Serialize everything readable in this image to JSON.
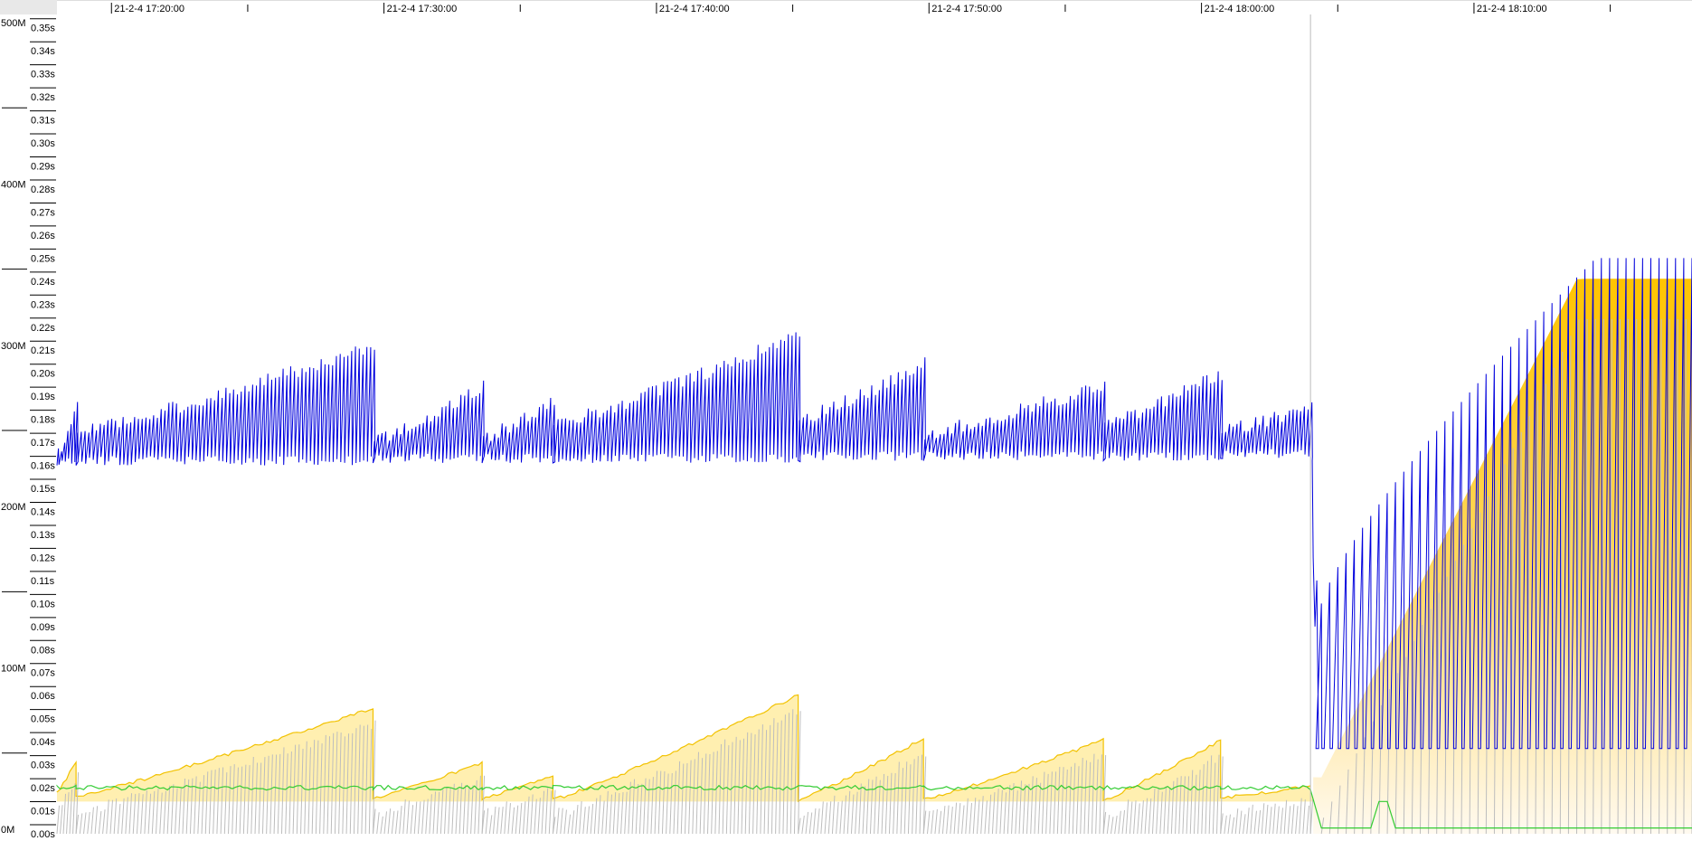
{
  "chart_data": {
    "type": "line",
    "title": "",
    "x_axis": {
      "labels": [
        "21-2-4 17:20:00",
        "21-2-4 17:30:00",
        "21-2-4 17:40:00",
        "21-2-4 17:50:00",
        "21-2-4 18:00:00",
        "21-2-4 18:10:00"
      ],
      "range": [
        "21-2-4 17:18:00",
        "21-2-4 18:18:00"
      ]
    },
    "y_axis_memory": {
      "labels": [
        "500M",
        "400M",
        "300M",
        "200M",
        "100M",
        "0M"
      ],
      "range": [
        0,
        500
      ]
    },
    "y_axis_pause": {
      "labels": [
        "0.35s",
        "0.34s",
        "0.33s",
        "0.32s",
        "0.31s",
        "0.30s",
        "0.29s",
        "0.28s",
        "0.27s",
        "0.26s",
        "0.25s",
        "0.24s",
        "0.23s",
        "0.22s",
        "0.21s",
        "0.20s",
        "0.19s",
        "0.18s",
        "0.17s",
        "0.16s",
        "0.15s",
        "0.14s",
        "0.13s",
        "0.12s",
        "0.11s",
        "0.10s",
        "0.09s",
        "0.08s",
        "0.07s",
        "0.06s",
        "0.05s",
        "0.04s",
        "0.03s",
        "0.02s",
        "0.01s",
        "0.00s"
      ],
      "range": [
        0,
        0.355
      ]
    },
    "grid": false,
    "marker_time": "21-2-4 18:04:00",
    "colors": {
      "used_memory": "#0000dd",
      "max_memory_line": "#f2c200",
      "max_memory_fill": "#ffefb0",
      "gc_pause": "#bdbdbd",
      "gc_overhead": "#33cc33"
    },
    "segments": [
      {
        "t0": 0.0,
        "t1": 0.7,
        "base": 0.16,
        "peaks": [
          0.165,
          0.19
        ],
        "max_mem": [
          25,
          45
        ]
      },
      {
        "t0": 0.7,
        "t1": 11.6,
        "base": 0.16,
        "peaks": [
          0.175,
          0.212
        ],
        "max_mem": [
          23,
          78
        ]
      },
      {
        "t0": 11.6,
        "t1": 15.6,
        "base": 0.161,
        "peaks": [
          0.17,
          0.195
        ],
        "max_mem": [
          22,
          44
        ]
      },
      {
        "t0": 15.6,
        "t1": 18.2,
        "base": 0.161,
        "peaks": [
          0.172,
          0.188
        ],
        "max_mem": [
          22,
          36
        ]
      },
      {
        "t0": 18.2,
        "t1": 27.2,
        "base": 0.161,
        "peaks": [
          0.178,
          0.217
        ],
        "max_mem": [
          21,
          86
        ]
      },
      {
        "t0": 27.2,
        "t1": 31.8,
        "base": 0.162,
        "peaks": [
          0.18,
          0.204
        ],
        "max_mem": [
          21,
          59
        ]
      },
      {
        "t0": 31.8,
        "t1": 38.4,
        "base": 0.162,
        "peaks": [
          0.174,
          0.195
        ],
        "max_mem": [
          21,
          58
        ]
      },
      {
        "t0": 38.4,
        "t1": 42.7,
        "base": 0.162,
        "peaks": [
          0.178,
          0.2
        ],
        "max_mem": [
          21,
          58
        ]
      },
      {
        "t0": 42.7,
        "t1": 46.0,
        "base": 0.163,
        "peaks": [
          0.175,
          0.185
        ],
        "max_mem": [
          22,
          30
        ]
      }
    ],
    "late_phase": {
      "t_start": 46.1,
      "t_end": 60.0,
      "base": 0.037,
      "peak_start": 0.1,
      "peak_end": 0.25,
      "max_mem_start": 35,
      "max_mem_end": 344
    }
  }
}
